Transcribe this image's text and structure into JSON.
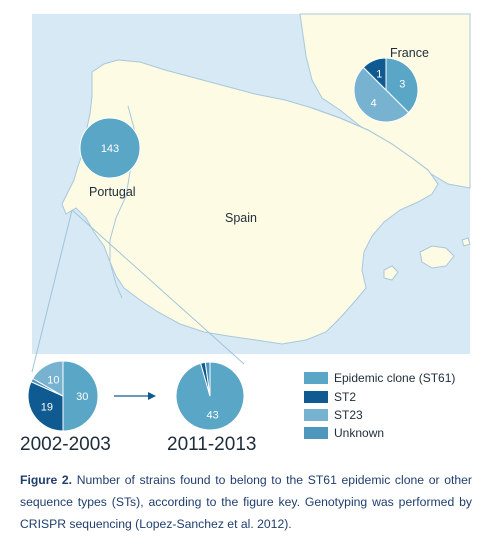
{
  "map": {
    "regions": {
      "france": "France",
      "portugal": "Portugal",
      "spain": "Spain"
    }
  },
  "colors": {
    "sea": "#d6e9f5",
    "land": "#fdfbe3",
    "border": "#a9c8dc",
    "epidemic": "#5aa6c6",
    "st2": "#0f5a91",
    "st23": "#77b3d1",
    "unknown": "#4f96bd"
  },
  "pies": {
    "france": {
      "slices": [
        {
          "category": "Epidemic clone (ST61)",
          "value": 3,
          "label": "3"
        },
        {
          "category": "ST23",
          "value": 4,
          "label": "4"
        },
        {
          "category": "ST2",
          "value": 1,
          "label": "1"
        }
      ]
    },
    "portugal": {
      "slices": [
        {
          "category": "Epidemic clone (ST61)",
          "value": 143,
          "label": "143"
        }
      ]
    },
    "y2002": {
      "period": "2002-2003",
      "slices": [
        {
          "category": "Epidemic clone (ST61)",
          "value": 30,
          "label": "30"
        },
        {
          "category": "ST2",
          "value": 19,
          "label": "19"
        },
        {
          "category": "Unknown",
          "value": 1,
          "label": ""
        },
        {
          "category": "ST23",
          "value": 10,
          "label": "10"
        }
      ]
    },
    "y2011": {
      "period": "2011-2013",
      "slices": [
        {
          "category": "Epidemic clone (ST61)",
          "value": 43,
          "label": "43"
        },
        {
          "category": "ST2",
          "value": 1,
          "label": ""
        },
        {
          "category": "Unknown",
          "value": 1,
          "label": ""
        }
      ]
    }
  },
  "legend": {
    "items": [
      {
        "label": "Epidemic clone (ST61)",
        "color": "#5aa6c6"
      },
      {
        "label": "ST2",
        "color": "#0f5a91"
      },
      {
        "label": "ST23",
        "color": "#77b3d1"
      },
      {
        "label": "Unknown",
        "color": "#4f96bd"
      }
    ]
  },
  "caption": {
    "prefix": "Figure 2.",
    "text": "Number of strains found to belong to the ST61 epidemic clone or other sequence types (STs), according to the figure key. Genotyping was performed by CRISPR sequencing (Lopez-Sanchez et al. 2012)."
  }
}
